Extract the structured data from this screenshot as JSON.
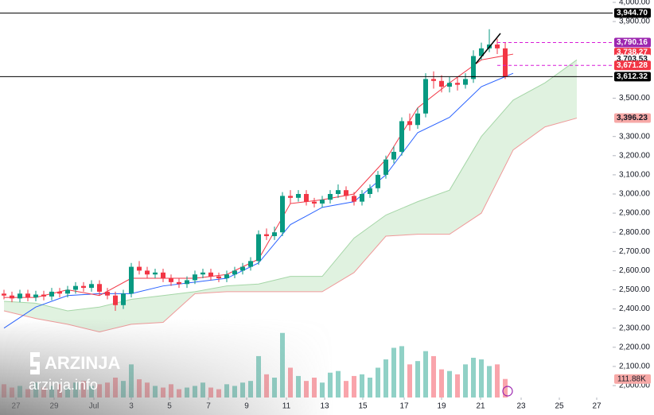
{
  "chart_data": {
    "type": "candlestick",
    "xlim": [
      -0.5,
      76.5
    ],
    "ylim": [
      1937.8,
      4012.4
    ],
    "vlim": [
      0,
      480
    ],
    "up_color": "#089981",
    "down_color": "#f23645",
    "yticks": [
      {
        "value": 4000,
        "label": "4,000.00"
      },
      {
        "value": 3900,
        "label": "3,900.00"
      },
      {
        "value": 3500,
        "label": "3,500.00"
      },
      {
        "value": 3300,
        "label": "3,300.00"
      },
      {
        "value": 3200,
        "label": "3,200.00"
      },
      {
        "value": 3100,
        "label": "3,100.00"
      },
      {
        "value": 3000,
        "label": "3,000.00"
      },
      {
        "value": 2900,
        "label": "2,900.00"
      },
      {
        "value": 2800,
        "label": "2,800.00"
      },
      {
        "value": 2700,
        "label": "2,700.00"
      },
      {
        "value": 2600,
        "label": "2,600.00"
      },
      {
        "value": 2500,
        "label": "2,500.00"
      },
      {
        "value": 2400,
        "label": "2,400.00"
      },
      {
        "value": 2300,
        "label": "2,300.00"
      },
      {
        "value": 2200,
        "label": "2,200.00"
      },
      {
        "value": 2100,
        "label": "2,100.00"
      },
      {
        "value": 2000,
        "label": "2,000.00"
      }
    ],
    "xticks": [
      {
        "value": 1.5,
        "label": "27"
      },
      {
        "value": 6.3,
        "label": "29"
      },
      {
        "value": 11.3,
        "label": "Jul"
      },
      {
        "value": 16,
        "label": "3"
      },
      {
        "value": 20.8,
        "label": "5"
      },
      {
        "value": 25.7,
        "label": "7"
      },
      {
        "value": 30.5,
        "label": "9"
      },
      {
        "value": 35.5,
        "label": "11"
      },
      {
        "value": 40.3,
        "label": "13"
      },
      {
        "value": 45.1,
        "label": "15"
      },
      {
        "value": 50.3,
        "label": "17"
      },
      {
        "value": 55,
        "label": "19"
      },
      {
        "value": 59.9,
        "label": "21"
      },
      {
        "value": 65,
        "label": "23"
      },
      {
        "value": 69.8,
        "label": "25"
      },
      {
        "value": 74.5,
        "label": "27"
      }
    ],
    "open": [
      2480,
      2470,
      2455,
      2480,
      2460,
      2475,
      2465,
      2490,
      2480,
      2500,
      2520,
      2510,
      2530,
      2490,
      2470,
      2420,
      2480,
      2620,
      2600,
      2580,
      2590,
      2560,
      2540,
      2530,
      2550,
      2580,
      2590,
      2570,
      2560,
      2580,
      2600,
      2620,
      2650,
      2790,
      2780,
      2800,
      2990,
      2980,
      3000,
      2960,
      2950,
      2970,
      3000,
      3020,
      2990,
      2960,
      3000,
      3030,
      3100,
      3180,
      3220,
      3380,
      3360,
      3420,
      3600,
      3590,
      3560,
      3580,
      3570,
      3600,
      3720,
      3760,
      3780,
      3760
    ],
    "high": [
      2500,
      2490,
      2500,
      2500,
      2495,
      2495,
      2510,
      2510,
      2520,
      2540,
      2540,
      2550,
      2550,
      2510,
      2490,
      2500,
      2640,
      2650,
      2620,
      2610,
      2610,
      2580,
      2560,
      2570,
      2600,
      2610,
      2610,
      2590,
      2600,
      2620,
      2640,
      2670,
      2810,
      2820,
      2830,
      3010,
      3020,
      3020,
      3020,
      2980,
      2990,
      3020,
      3050,
      3040,
      3010,
      3020,
      3050,
      3120,
      3200,
      3250,
      3400,
      3420,
      3450,
      3630,
      3640,
      3620,
      3610,
      3610,
      3630,
      3750,
      3790,
      3860,
      3810,
      3790
    ],
    "low": [
      2450,
      2435,
      2435,
      2440,
      2440,
      2445,
      2445,
      2460,
      2460,
      2480,
      2490,
      2490,
      2470,
      2450,
      2390,
      2400,
      2460,
      2580,
      2560,
      2560,
      2540,
      2520,
      2510,
      2510,
      2530,
      2560,
      2550,
      2540,
      2540,
      2560,
      2580,
      2600,
      2630,
      2760,
      2760,
      2780,
      2950,
      2960,
      2940,
      2930,
      2930,
      2950,
      2980,
      2970,
      2940,
      2940,
      2980,
      3010,
      3080,
      3160,
      3200,
      3330,
      3340,
      3400,
      3550,
      3530,
      3530,
      3540,
      3550,
      3580,
      3700,
      3740,
      3730,
      3600
    ],
    "close": [
      2470,
      2455,
      2480,
      2460,
      2475,
      2465,
      2490,
      2480,
      2500,
      2520,
      2510,
      2530,
      2490,
      2470,
      2420,
      2480,
      2620,
      2600,
      2580,
      2590,
      2560,
      2540,
      2530,
      2550,
      2580,
      2590,
      2570,
      2560,
      2580,
      2600,
      2620,
      2650,
      2790,
      2780,
      2800,
      2990,
      2980,
      3000,
      2960,
      2950,
      2970,
      3000,
      3020,
      2990,
      2960,
      3000,
      3030,
      3100,
      3180,
      3220,
      3380,
      3360,
      3420,
      3600,
      3590,
      3560,
      3580,
      3570,
      3600,
      3720,
      3760,
      3780,
      3760,
      3612
    ],
    "volume": {
      "values": [
        80,
        60,
        70,
        50,
        90,
        60,
        70,
        80,
        60,
        90,
        100,
        70,
        80,
        90,
        120,
        100,
        200,
        110,
        90,
        70,
        60,
        80,
        50,
        60,
        70,
        90,
        60,
        50,
        80,
        70,
        90,
        100,
        250,
        140,
        120,
        390,
        180,
        130,
        100,
        120,
        90,
        150,
        160,
        100,
        130,
        140,
        120,
        180,
        230,
        300,
        310,
        200,
        220,
        280,
        250,
        170,
        160,
        140,
        200,
        240,
        230,
        190,
        200,
        111.88
      ],
      "label": {
        "value": 111.88,
        "label": "111.88K"
      }
    },
    "indicators": {
      "x": [
        0,
        4,
        8,
        12,
        16,
        20,
        24,
        28,
        32,
        36,
        40,
        44,
        48,
        52,
        56,
        60,
        64,
        68,
        72
      ],
      "cloud": {
        "color": "#d8efd8",
        "a": [
          2440,
          2430,
          2390,
          2410,
          2450,
          2470,
          2490,
          2520,
          2530,
          2570,
          2570,
          2770,
          2890,
          2960,
          3020,
          3300,
          3490,
          3580,
          3700
        ],
        "b": [
          2390,
          2350,
          2320,
          2280,
          2320,
          2330,
          2480,
          2490,
          2490,
          2490,
          2490,
          2590,
          2780,
          2790,
          2790,
          2900,
          3230,
          3350,
          3396
        ],
        "a_color": "#a5d6a7",
        "b_color": "#ef9a9a"
      },
      "lines": [
        {
          "color": "#2962ff",
          "values": [
            2300,
            2410,
            2470,
            2480,
            2480,
            2520,
            2540,
            2560,
            2640,
            2840,
            2930,
            2960,
            3100,
            3320,
            3400,
            3560,
            3630,
            null,
            null
          ]
        },
        {
          "color": "#f23645",
          "values": [
            2460,
            2460,
            2500,
            2470,
            2560,
            2560,
            2560,
            2580,
            2660,
            2950,
            2970,
            3000,
            3180,
            3450,
            3580,
            3700,
            3730,
            null,
            null
          ]
        }
      ]
    },
    "price_labels": [
      {
        "value": 3944.7,
        "label": "3,944.70",
        "bg": "#000000",
        "fg": "#ffffff",
        "line": "solid"
      },
      {
        "value": 3790.16,
        "label": "3,790.16",
        "bg": "#9c27b0",
        "fg": "#ffffff",
        "line": "dashed"
      },
      {
        "value": 3738.27,
        "label": "3,738.27",
        "bg": "#f23645",
        "fg": "#ffffff",
        "line": "none"
      },
      {
        "value": 3703.53,
        "label": "3,703.53",
        "bg": "#ffffff",
        "fg": "#131722",
        "line": "none"
      },
      {
        "value": 3671.28,
        "label": "3,671.28",
        "bg": "#f23645",
        "fg": "#ffffff",
        "line": "dashed"
      },
      {
        "value": 3612.32,
        "label": "3,612.32",
        "bg": "#000000",
        "fg": "#ffffff",
        "line": "solid"
      },
      {
        "value": 3396.23,
        "label": "3,396.23",
        "bg": "#f7a9a7",
        "fg": "#131722",
        "line": "none"
      }
    ],
    "watermark": {
      "brand": "ARZINJA",
      "site": "arzinja.info"
    }
  }
}
